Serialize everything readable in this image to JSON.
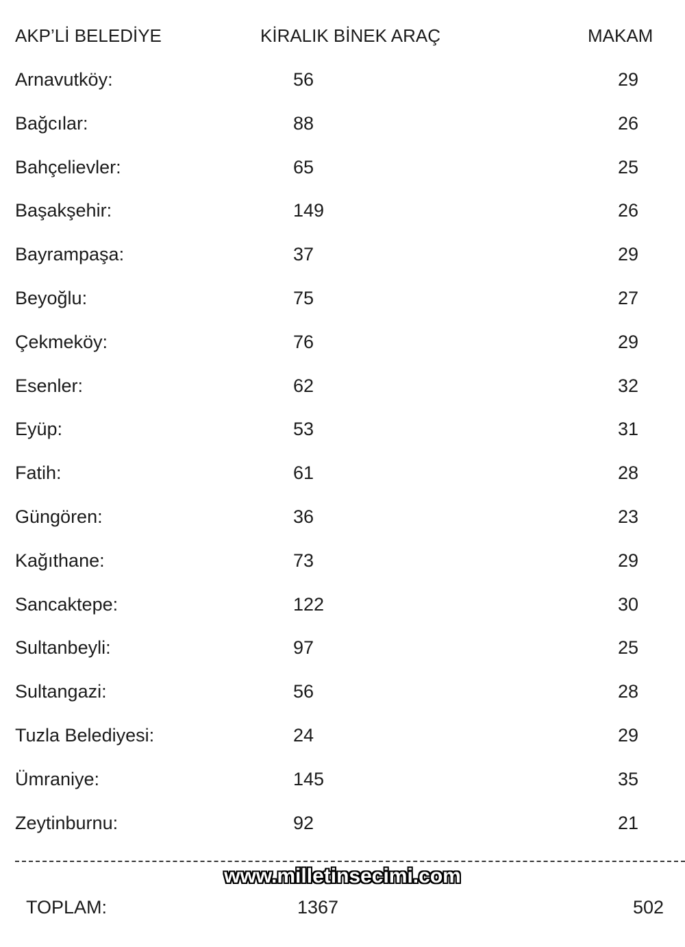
{
  "header": {
    "col1": "AKP’Lİ BELEDİYE",
    "col2": "KİRALIK BİNEK ARAÇ",
    "col3": "MAKAM"
  },
  "rows": [
    {
      "name": "Arnavutköy:",
      "kiralik": "56",
      "makam": "29"
    },
    {
      "name": "Bağcılar:",
      "kiralik": "88",
      "makam": "26"
    },
    {
      "name": "Bahçelievler:",
      "kiralik": "65",
      "makam": "25"
    },
    {
      "name": "Başakşehir:",
      "kiralik": "149",
      "makam": "26"
    },
    {
      "name": "Bayrampaşa:",
      "kiralik": "37",
      "makam": "29"
    },
    {
      "name": "Beyoğlu:",
      "kiralik": "75",
      "makam": "27"
    },
    {
      "name": "Çekmeköy:",
      "kiralik": "76",
      "makam": "29"
    },
    {
      "name": "Esenler:",
      "kiralik": "62",
      "makam": "32"
    },
    {
      "name": "Eyüp:",
      "kiralik": "53",
      "makam": "31"
    },
    {
      "name": "Fatih:",
      "kiralik": "61",
      "makam": "28"
    },
    {
      "name": "Güngören:",
      "kiralik": "36",
      "makam": "23"
    },
    {
      "name": "Kağıthane:",
      "kiralik": "73",
      "makam": "29"
    },
    {
      "name": "Sancaktepe:",
      "kiralik": "122",
      "makam": "30"
    },
    {
      "name": "Sultanbeyli:",
      "kiralik": "97",
      "makam": "25"
    },
    {
      "name": "Sultangazi:",
      "kiralik": "56",
      "makam": "28"
    },
    {
      "name": "Tuzla Belediyesi:",
      "kiralik": "24",
      "makam": "29"
    },
    {
      "name": "Ümraniye:",
      "kiralik": "145",
      "makam": "35"
    },
    {
      "name": "Zeytinburnu:",
      "kiralik": "92",
      "makam": "21"
    }
  ],
  "watermark": "www.milletinsecimi.com",
  "total": {
    "label": "TOPLAM:",
    "kiralik": "1367",
    "makam": "502"
  }
}
